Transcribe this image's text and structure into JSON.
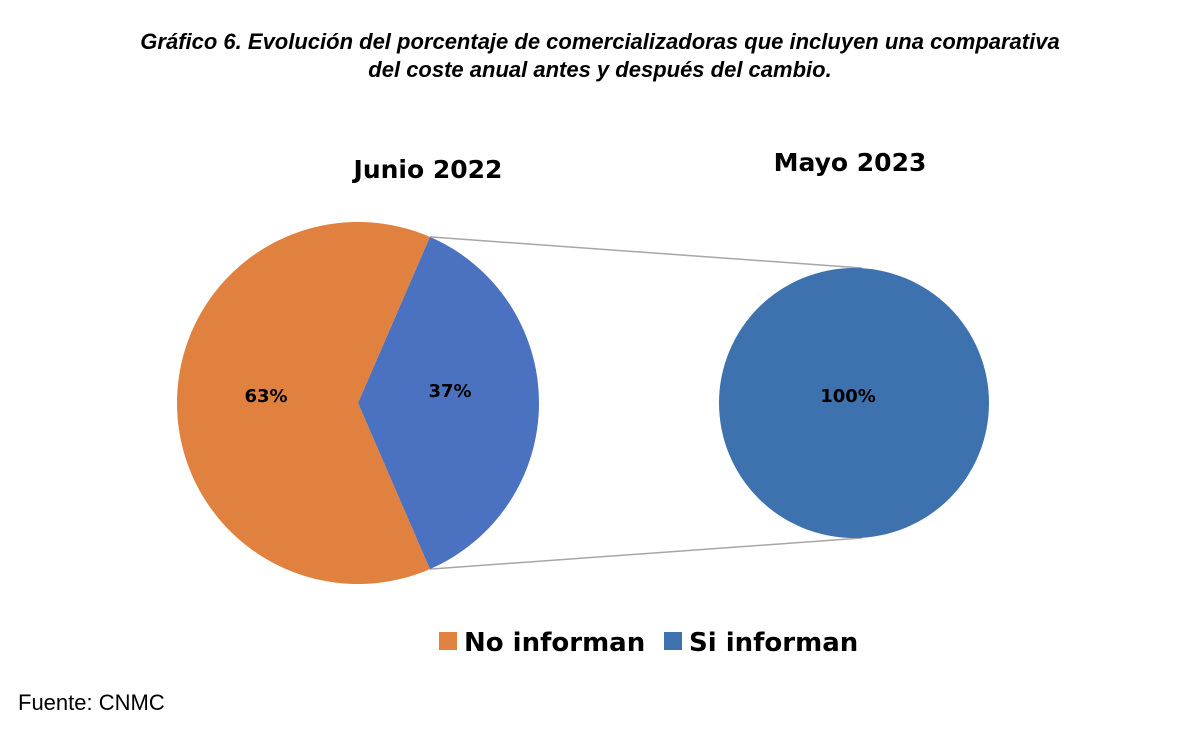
{
  "title_line1": "Gráfico 6. Evolución del porcentaje de comercializadoras que incluyen una comparativa",
  "title_line2": "del coste anual antes y después del cambio.",
  "footer": "Fuente: CNMC",
  "chart_data": [
    {
      "type": "pie",
      "title": "Junio 2022",
      "categories": [
        "No informan",
        "Si informan"
      ],
      "values": [
        63,
        37
      ],
      "labels": [
        "63%",
        "37%"
      ],
      "colors": [
        "#E0813F",
        "#4A72C0"
      ]
    },
    {
      "type": "pie",
      "title": "Mayo 2023",
      "categories": [
        "Si informan"
      ],
      "values": [
        100
      ],
      "labels": [
        "100%"
      ],
      "colors": [
        "#3E72AE"
      ]
    }
  ],
  "legend": {
    "placement": "bottom",
    "items": [
      {
        "label": "No informan",
        "color": "#E0813F"
      },
      {
        "label": "Si informan",
        "color": "#3E72AE"
      }
    ]
  }
}
